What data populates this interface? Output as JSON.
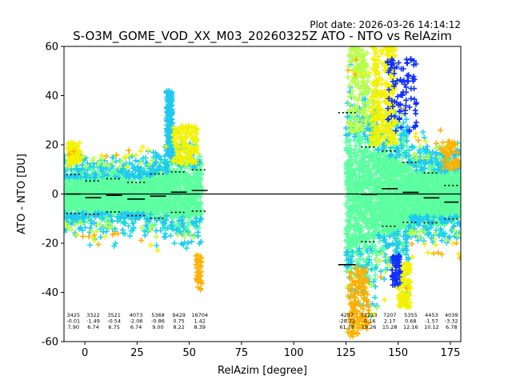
{
  "chart_data": {
    "type": "scatter",
    "plot_date": "Plot date: 2026-03-26 14:14:12",
    "title": "S-O3M_GOME_VOD_XX_M03_20260325Z ATO - NTO vs RelAzim",
    "xlabel": "RelAzim [degree]",
    "ylabel": "ATO - NTO [DU]",
    "xlim": [
      -10,
      180
    ],
    "ylim": [
      -60,
      60
    ],
    "xticks": [
      0,
      25,
      50,
      75,
      100,
      125,
      150,
      175
    ],
    "yticks": [
      -60,
      -40,
      -20,
      0,
      20,
      40,
      60
    ],
    "colors": {
      "dense": "#5cff9f",
      "mid": "#1fc8f0",
      "cyan": "#19d9e6",
      "yellow": "#f2f200",
      "lime": "#b7ff4a",
      "orange": "#ffb000",
      "blue": "#1030ff"
    },
    "bins": [
      {
        "x": [
          -10,
          -1
        ],
        "count": "3425",
        "mean": "-0.01",
        "std": "7.90"
      },
      {
        "x": [
          -1,
          9
        ],
        "count": "3322",
        "mean": "-1.49",
        "std": "6.74"
      },
      {
        "x": [
          9,
          19
        ],
        "count": "3521",
        "mean": "-0.54",
        "std": "6.75"
      },
      {
        "x": [
          19,
          30
        ],
        "count": "4073",
        "mean": "-2.06",
        "std": "6.74"
      },
      {
        "x": [
          30,
          40
        ],
        "count": "5368",
        "mean": "-0.86",
        "std": "9.00"
      },
      {
        "x": [
          40,
          50
        ],
        "count": "9429",
        "mean": "0.75",
        "std": "8.22"
      },
      {
        "x": [
          50,
          60
        ],
        "count": "16704",
        "mean": "1.42",
        "std": "8.39"
      },
      {
        "x": [
          120,
          131
        ],
        "count": "4257",
        "mean": "-28.72",
        "std": "61.78"
      },
      {
        "x": [
          131,
          141
        ],
        "count": "12213",
        "mean": "-0.16",
        "std": "19.26"
      },
      {
        "x": [
          141,
          151
        ],
        "count": "7207",
        "mean": "2.17",
        "std": "15.28"
      },
      {
        "x": [
          151,
          161
        ],
        "count": "5355",
        "mean": "0.68",
        "std": "12.16"
      },
      {
        "x": [
          161,
          171
        ],
        "count": "4453",
        "mean": "-1.57",
        "std": "10.12"
      },
      {
        "x": [
          171,
          181
        ],
        "count": "4039",
        "mean": "-3.32",
        "std": "6.78"
      }
    ]
  }
}
